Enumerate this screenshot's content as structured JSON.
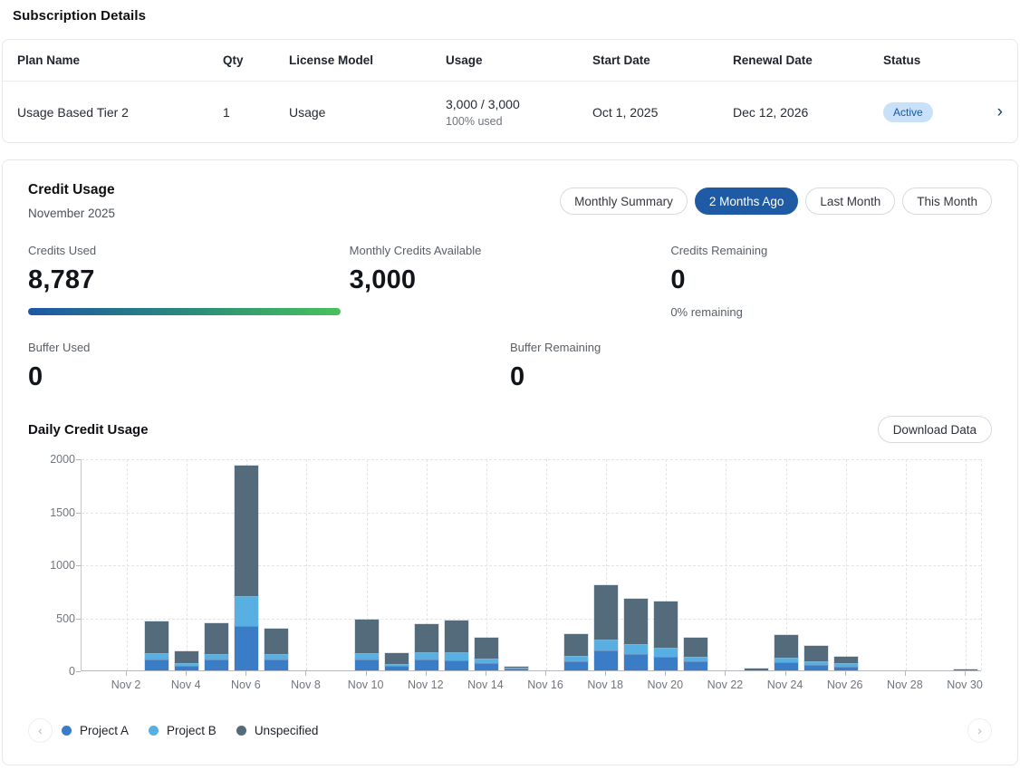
{
  "page": {
    "title": "Subscription Details"
  },
  "icons": {
    "chevron_right": "›",
    "legend_prev": "‹",
    "legend_next": "›"
  },
  "colors": {
    "accent_blue": "#1e5ba4",
    "badge_bg": "#c8e0f8",
    "badge_text": "#1659a4",
    "progress_gradient_start": "#1d57a6",
    "progress_gradient_end": "#49c15b"
  },
  "subscription_table": {
    "columns": [
      "Plan Name",
      "Qty",
      "License Model",
      "Usage",
      "Start Date",
      "Renewal Date",
      "Status"
    ],
    "row": {
      "plan_name": "Usage Based Tier 2",
      "qty": "1",
      "license_model": "Usage",
      "usage": "3,000 / 3,000",
      "usage_sub": "100% used",
      "start_date": "Oct 1, 2025",
      "renewal_date": "Dec 12, 2026",
      "status": "Active"
    }
  },
  "credit_usage": {
    "title": "Credit Usage",
    "subtitle": "November 2025",
    "tabs": [
      {
        "label": "Monthly Summary",
        "active": false
      },
      {
        "label": "2 Months Ago",
        "active": true
      },
      {
        "label": "Last Month",
        "active": false
      },
      {
        "label": "This Month",
        "active": false
      }
    ],
    "stats": {
      "credits_used_label": "Credits Used",
      "credits_used": "8,787",
      "monthly_available_label": "Monthly Credits Available",
      "monthly_available": "3,000",
      "remaining_label": "Credits Remaining",
      "remaining": "0",
      "remaining_sub": "0% remaining",
      "buffer_used_label": "Buffer Used",
      "buffer_used": "0",
      "buffer_remaining_label": "Buffer Remaining",
      "buffer_remaining": "0"
    },
    "daily": {
      "title": "Daily Credit Usage",
      "download_label": "Download Data"
    }
  },
  "chart_data": {
    "type": "bar",
    "stacked": true,
    "title": "Daily Credit Usage",
    "xlabel": "",
    "ylabel": "",
    "ylim": [
      0,
      2000
    ],
    "yticks": [
      0,
      500,
      1000,
      1500,
      2000
    ],
    "grid": true,
    "legend_position": "bottom",
    "categories": [
      "Nov 1",
      "Nov 2",
      "Nov 3",
      "Nov 4",
      "Nov 5",
      "Nov 6",
      "Nov 7",
      "Nov 8",
      "Nov 9",
      "Nov 10",
      "Nov 11",
      "Nov 12",
      "Nov 13",
      "Nov 14",
      "Nov 15",
      "Nov 16",
      "Nov 17",
      "Nov 18",
      "Nov 19",
      "Nov 20",
      "Nov 21",
      "Nov 22",
      "Nov 23",
      "Nov 24",
      "Nov 25",
      "Nov 26",
      "Nov 27",
      "Nov 28",
      "Nov 29",
      "Nov 30"
    ],
    "x_tick_labels": [
      "Nov 2",
      "Nov 4",
      "Nov 6",
      "Nov 8",
      "Nov 10",
      "Nov 12",
      "Nov 14",
      "Nov 16",
      "Nov 18",
      "Nov 20",
      "Nov 22",
      "Nov 24",
      "Nov 26",
      "Nov 28",
      "Nov 30"
    ],
    "series": [
      {
        "name": "Project A",
        "color": "#3b7cc6",
        "values": [
          0,
          0,
          100,
          40,
          100,
          420,
          100,
          0,
          0,
          105,
          40,
          100,
          90,
          70,
          15,
          0,
          85,
          190,
          150,
          125,
          85,
          0,
          0,
          80,
          50,
          35,
          0,
          0,
          0,
          0
        ]
      },
      {
        "name": "Project B",
        "color": "#57afe2",
        "values": [
          0,
          0,
          60,
          30,
          55,
          285,
          50,
          0,
          0,
          60,
          20,
          70,
          80,
          40,
          10,
          0,
          55,
          105,
          100,
          85,
          45,
          0,
          0,
          40,
          35,
          30,
          0,
          0,
          0,
          0
        ]
      },
      {
        "name": "Unspecified",
        "color": "#546b7c",
        "values": [
          0,
          0,
          300,
          112,
          290,
          1230,
          245,
          0,
          0,
          315,
          100,
          265,
          300,
          195,
          10,
          0,
          200,
          505,
          425,
          440,
          175,
          0,
          20,
          210,
          145,
          60,
          0,
          0,
          0,
          10
        ]
      }
    ]
  }
}
